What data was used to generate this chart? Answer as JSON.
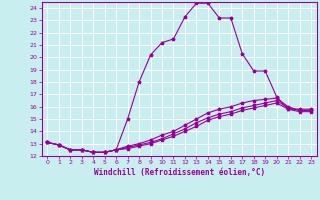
{
  "xlabel": "Windchill (Refroidissement éolien,°C)",
  "bg_color": "#c8eef0",
  "line_color": "#990099",
  "grid_color": "#ffffff",
  "xlim": [
    -0.5,
    23.5
  ],
  "ylim": [
    12,
    24.5
  ],
  "yticks": [
    12,
    13,
    14,
    15,
    16,
    17,
    18,
    19,
    20,
    21,
    22,
    23,
    24
  ],
  "xticks": [
    0,
    1,
    2,
    3,
    4,
    5,
    6,
    7,
    8,
    9,
    10,
    11,
    12,
    13,
    14,
    15,
    16,
    17,
    18,
    19,
    20,
    21,
    22,
    23
  ],
  "series": [
    {
      "x": [
        0,
        1,
        2,
        3,
        4,
        5,
        6,
        7,
        8,
        9,
        10,
        11,
        12,
        13,
        14,
        15,
        16,
        17,
        18,
        19,
        20,
        21,
        22,
        23
      ],
      "y": [
        13.1,
        12.9,
        12.5,
        12.5,
        12.3,
        12.3,
        12.5,
        15.0,
        18.0,
        20.2,
        21.2,
        21.5,
        23.3,
        24.4,
        24.4,
        23.2,
        23.2,
        20.3,
        18.9,
        18.9,
        16.8,
        15.8,
        15.8,
        15.8
      ]
    },
    {
      "x": [
        0,
        1,
        2,
        3,
        4,
        5,
        6,
        7,
        8,
        9,
        10,
        11,
        12,
        13,
        14,
        15,
        16,
        17,
        18,
        19,
        20,
        21,
        22,
        23
      ],
      "y": [
        13.1,
        12.9,
        12.5,
        12.5,
        12.3,
        12.3,
        12.5,
        12.8,
        13.0,
        13.3,
        13.7,
        14.0,
        14.5,
        15.0,
        15.5,
        15.8,
        16.0,
        16.3,
        16.5,
        16.6,
        16.7,
        16.0,
        15.7,
        15.7
      ]
    },
    {
      "x": [
        0,
        1,
        2,
        3,
        4,
        5,
        6,
        7,
        8,
        9,
        10,
        11,
        12,
        13,
        14,
        15,
        16,
        17,
        18,
        19,
        20,
        21,
        22,
        23
      ],
      "y": [
        13.1,
        12.9,
        12.5,
        12.5,
        12.3,
        12.3,
        12.5,
        12.7,
        12.9,
        13.1,
        13.4,
        13.8,
        14.2,
        14.7,
        15.1,
        15.4,
        15.6,
        15.9,
        16.1,
        16.3,
        16.5,
        15.9,
        15.7,
        15.7
      ]
    },
    {
      "x": [
        0,
        1,
        2,
        3,
        4,
        5,
        6,
        7,
        8,
        9,
        10,
        11,
        12,
        13,
        14,
        15,
        16,
        17,
        18,
        19,
        20,
        21,
        22,
        23
      ],
      "y": [
        13.1,
        12.9,
        12.5,
        12.5,
        12.3,
        12.3,
        12.5,
        12.6,
        12.8,
        13.0,
        13.3,
        13.6,
        14.0,
        14.4,
        14.9,
        15.2,
        15.4,
        15.7,
        15.9,
        16.1,
        16.3,
        15.8,
        15.6,
        15.6
      ]
    }
  ]
}
